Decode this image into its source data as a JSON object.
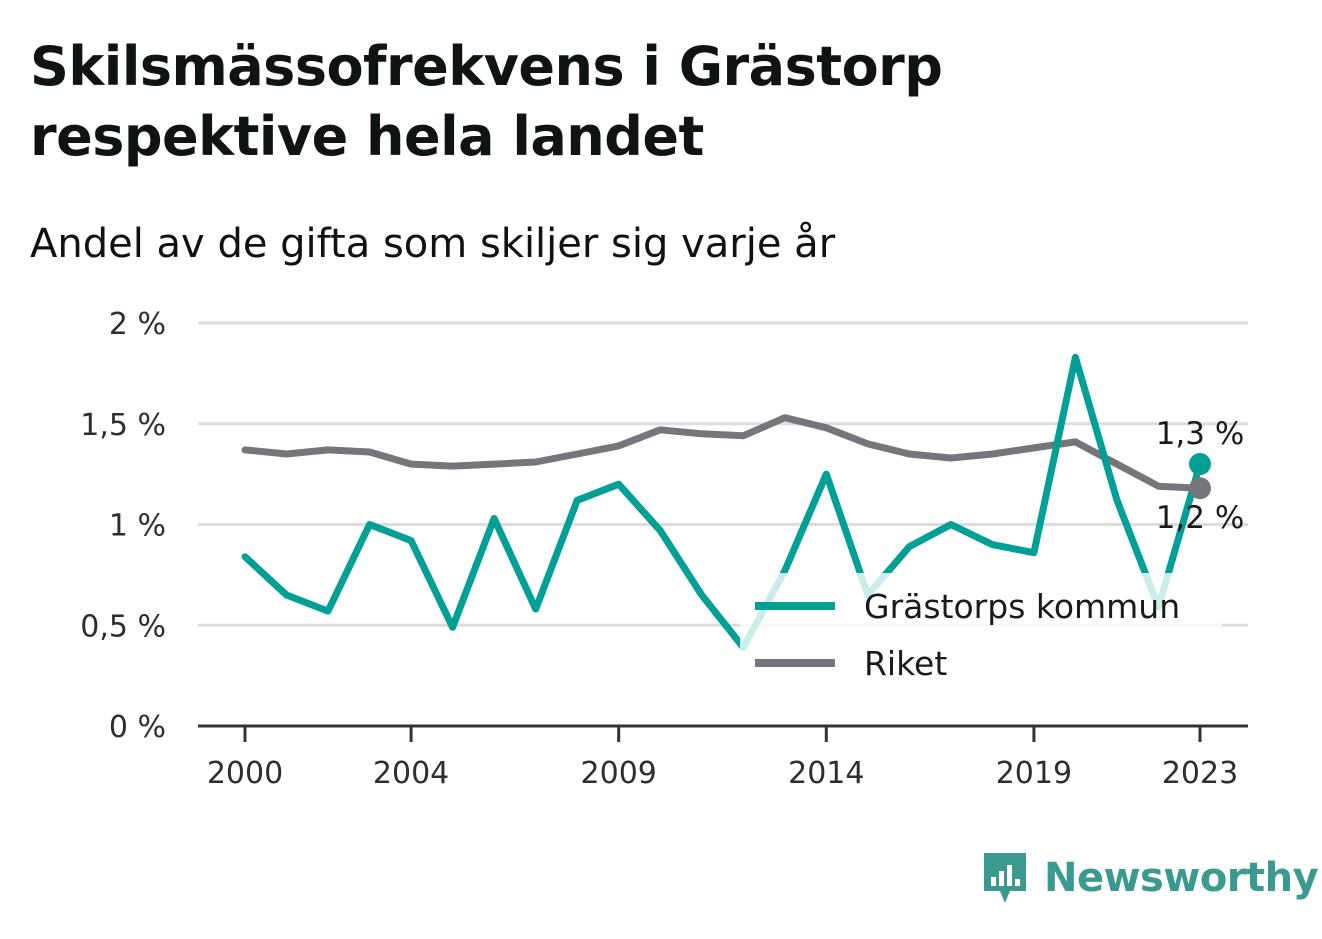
{
  "title": "Skilsmässofrekvens i Grästorp respektive hela landet",
  "subtitle": "Andel av de gifta som skiljer sig varje år",
  "brand": {
    "name": "Newsworthy",
    "icon": "newsworthy-logo-icon",
    "color": "#3a9a8f"
  },
  "chart_data": {
    "type": "line",
    "x": [
      2000,
      2001,
      2002,
      2003,
      2004,
      2005,
      2006,
      2007,
      2008,
      2009,
      2010,
      2011,
      2012,
      2013,
      2014,
      2015,
      2016,
      2017,
      2018,
      2019,
      2020,
      2021,
      2022,
      2023
    ],
    "x_tick_values": [
      2000,
      2004,
      2009,
      2014,
      2019,
      2023
    ],
    "x_tick_labels": [
      "2000",
      "2004",
      "2009",
      "2014",
      "2019",
      "2023"
    ],
    "ylim": [
      0,
      2
    ],
    "y_tick_values": [
      0,
      0.5,
      1,
      1.5,
      2
    ],
    "y_tick_labels": [
      "0 %",
      "0,5 %",
      "1 %",
      "1,5 %",
      "2 %"
    ],
    "grid": true,
    "legend_position": "bottom-right",
    "series": [
      {
        "name": "Grästorps kommun",
        "color": "#00a096",
        "values": [
          0.84,
          0.65,
          0.57,
          1.0,
          0.92,
          0.49,
          1.03,
          0.58,
          1.12,
          1.2,
          0.97,
          0.65,
          0.39,
          0.77,
          1.25,
          0.65,
          0.89,
          1.0,
          0.9,
          0.86,
          1.83,
          1.12,
          0.59,
          1.3
        ],
        "end_label": "1,3 %"
      },
      {
        "name": "Riket",
        "color": "#76757c",
        "values": [
          1.37,
          1.35,
          1.37,
          1.36,
          1.3,
          1.29,
          1.3,
          1.31,
          1.35,
          1.39,
          1.47,
          1.45,
          1.44,
          1.53,
          1.48,
          1.4,
          1.35,
          1.33,
          1.35,
          1.38,
          1.41,
          1.3,
          1.19,
          1.18
        ],
        "end_label": "1,2 %"
      }
    ]
  }
}
